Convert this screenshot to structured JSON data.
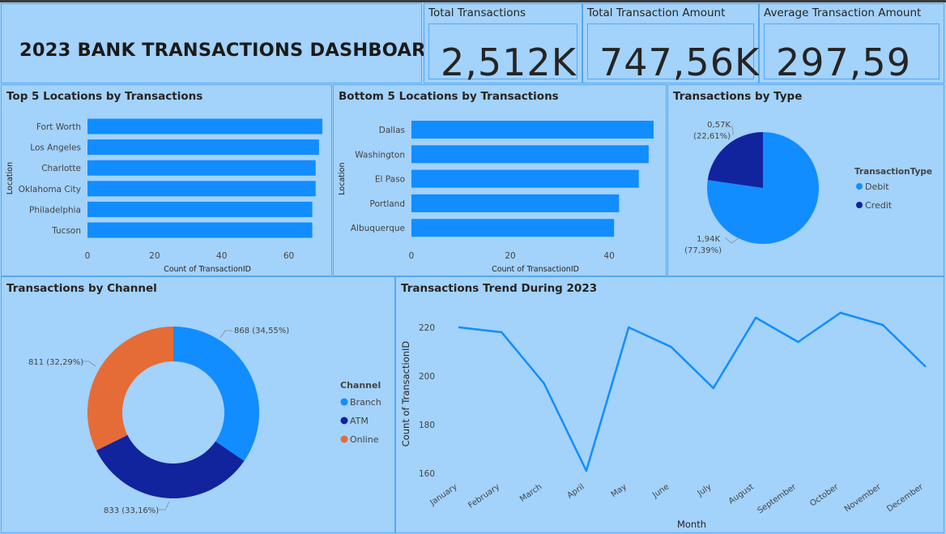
{
  "dashboard": {
    "title": "2023 BANK TRANSACTIONS DASHBOARD"
  },
  "kpis": [
    {
      "label": "Total Transactions",
      "value": "2,512K"
    },
    {
      "label": "Total Transaction Amount",
      "value": "747,56K"
    },
    {
      "label": "Average Transaction Amount",
      "value": "297,59"
    }
  ],
  "colors": {
    "background": "#a3d2fb",
    "blue": "#118dff",
    "navy": "#12239e",
    "orange": "#e66c37",
    "border": "#56a8ee"
  },
  "chart_data": [
    {
      "type": "bar",
      "title": "Top 5 Locations by Transactions",
      "xlabel": "Count of TransactionID",
      "ylabel": "Location",
      "categories": [
        "Fort Worth",
        "Los Angeles",
        "Charlotte",
        "Oklahoma City",
        "Philadelphia",
        "Tucson"
      ],
      "values": [
        70,
        69,
        68,
        68,
        67,
        67
      ],
      "xlim": [
        0,
        70
      ],
      "xticks": [
        "0",
        "20",
        "40",
        "60"
      ]
    },
    {
      "type": "bar",
      "title": "Bottom 5 Locations by Transactions",
      "xlabel": "Count of TransactionID",
      "ylabel": "Location",
      "categories": [
        "Dallas",
        "Washington",
        "El Paso",
        "Portland",
        "Albuquerque"
      ],
      "values": [
        49,
        48,
        46,
        42,
        41
      ],
      "xlim": [
        0,
        49
      ],
      "xticks": [
        "0",
        "20",
        "40"
      ]
    },
    {
      "type": "pie",
      "title": "Transactions by Type",
      "legend_title": "TransactionType",
      "labels": [
        "Debit",
        "Credit"
      ],
      "values": [
        1.94,
        0.57
      ],
      "percents": [
        77.39,
        22.61
      ],
      "data_labels": [
        [
          "1,94K",
          "(77,39%)"
        ],
        [
          "0,57K",
          "(22,61%)"
        ]
      ]
    },
    {
      "type": "pie",
      "title": "Transactions by Channel",
      "legend_title": "Channel",
      "labels": [
        "Branch",
        "ATM",
        "Online"
      ],
      "values": [
        868,
        833,
        811
      ],
      "percents": [
        34.55,
        33.16,
        32.29
      ],
      "data_labels": [
        "868 (34,55%)",
        "833 (33,16%)",
        "811 (32,29%)"
      ]
    },
    {
      "type": "line",
      "title": "Transactions Trend During 2023",
      "xlabel": "Month",
      "ylabel": "Count of TransactionID",
      "categories": [
        "January",
        "February",
        "March",
        "April",
        "May",
        "June",
        "July",
        "August",
        "September",
        "October",
        "November",
        "December"
      ],
      "values": [
        220,
        218,
        197,
        161,
        220,
        212,
        195,
        224,
        214,
        226,
        221,
        204
      ],
      "ylim": [
        158,
        228
      ],
      "yticks": [
        "160",
        "180",
        "200",
        "220"
      ]
    }
  ]
}
